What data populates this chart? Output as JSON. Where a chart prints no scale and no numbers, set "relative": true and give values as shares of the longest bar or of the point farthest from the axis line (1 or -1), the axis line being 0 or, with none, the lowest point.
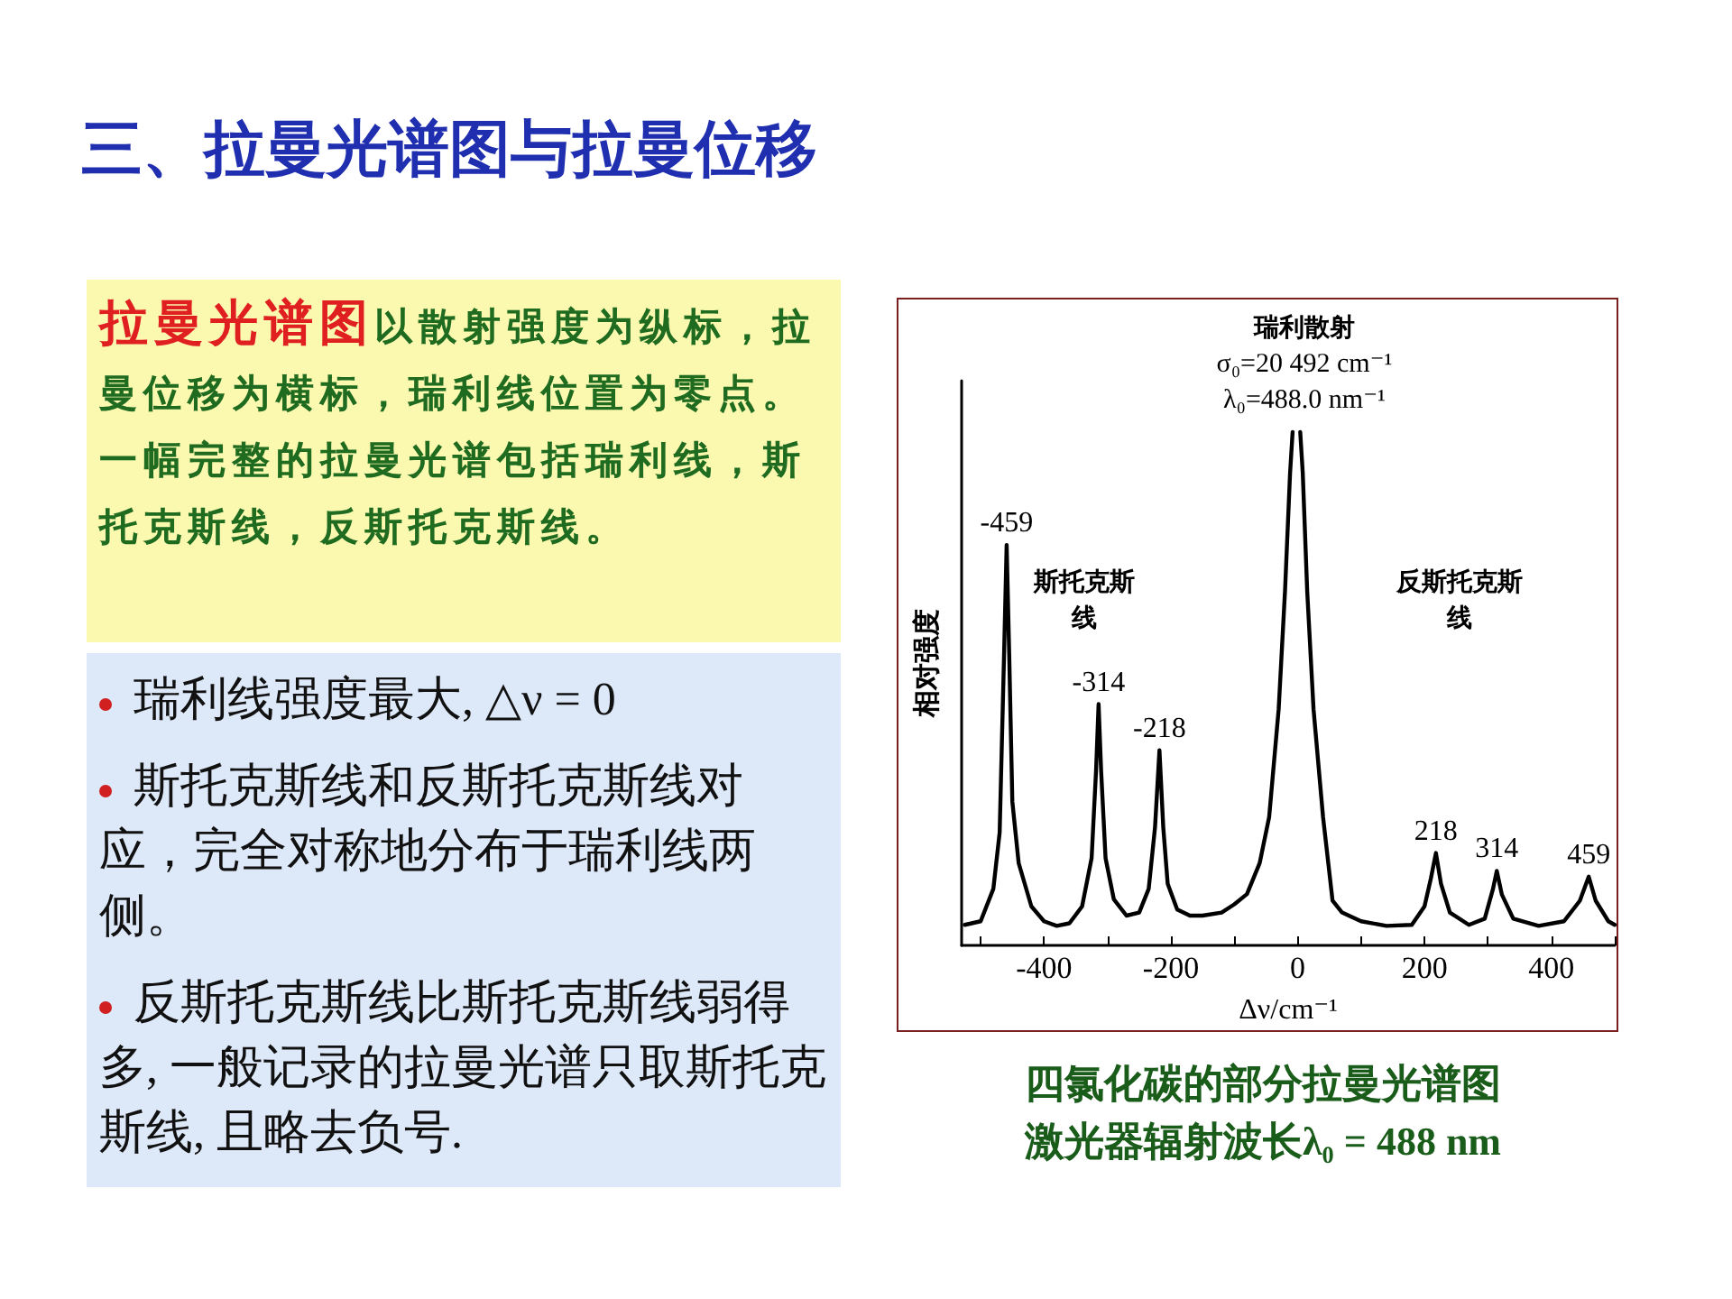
{
  "chart_data": {
    "type": "line",
    "title": "三、拉曼光谱图与拉曼位移",
    "xlabel": "Δν/cm⁻¹",
    "ylabel": "相对强度",
    "relative": true,
    "grid": false,
    "marker": "none",
    "line_style": "solid",
    "xlim": [
      -530,
      500
    ],
    "xticks": [
      {
        "value": -500,
        "label": null
      },
      -400,
      {
        "value": -300,
        "label": null
      },
      -200,
      {
        "value": -100,
        "label": null
      },
      0,
      {
        "value": 100,
        "label": null
      },
      200,
      {
        "value": 300,
        "label": null
      },
      400,
      {
        "value": 500,
        "label": null
      }
    ],
    "x": [
      -525,
      -500,
      -480,
      -470,
      -463,
      -459,
      -455,
      -450,
      -440,
      -420,
      -400,
      -380,
      -360,
      -340,
      -325,
      -318,
      -314,
      -310,
      -303,
      -290,
      -270,
      -250,
      -235,
      -225,
      -218,
      -212,
      -205,
      -190,
      -170,
      -150,
      -120,
      -100,
      -80,
      -60,
      -45,
      -30,
      -20,
      -12,
      -8,
      0,
      4,
      8,
      15,
      25,
      40,
      55,
      70,
      100,
      140,
      180,
      200,
      210,
      218,
      226,
      240,
      270,
      295,
      308,
      314,
      322,
      340,
      380,
      420,
      445,
      459,
      470,
      490,
      500
    ],
    "series": [
      {
        "color": "#000000",
        "values": [
          0.04,
          0.047,
          0.11,
          0.22,
          0.57,
          0.78,
          0.57,
          0.28,
          0.16,
          0.076,
          0.047,
          0.038,
          0.043,
          0.076,
          0.17,
          0.34,
          0.47,
          0.34,
          0.17,
          0.09,
          0.058,
          0.064,
          0.11,
          0.23,
          0.38,
          0.23,
          0.12,
          0.07,
          0.058,
          0.058,
          0.064,
          0.08,
          0.1,
          0.16,
          0.25,
          0.46,
          0.69,
          0.92,
          1,
          null,
          1,
          0.92,
          0.69,
          0.46,
          0.25,
          0.087,
          0.064,
          0.047,
          0.038,
          0.04,
          0.076,
          0.13,
          0.18,
          0.12,
          0.064,
          0.04,
          0.052,
          0.11,
          0.145,
          0.099,
          0.052,
          0.038,
          0.047,
          0.087,
          0.134,
          0.087,
          0.047,
          0.04
        ]
      }
    ],
    "annotations": [
      "拉曼光谱图",
      "以散射强度为纵标，拉曼位移为横标，瑞利线位置为零点。一幅完整的拉曼光谱包括瑞利线，斯托克斯线，反斯托克斯线。",
      "瑞利线强度最大, △ν = 0",
      "斯托克斯线和反斯托克斯线对应，完全对称地分布于瑞利线两侧。",
      "反斯托克斯线比斯托克斯线弱得多, 一般记录的拉曼光谱只取斯托克斯线, 且略去负号.",
      "瑞利散射",
      "σ₀=20 492 cm⁻¹",
      "λ₀=488.0 nm⁻¹",
      "斯托克斯线",
      "反斯托克斯线",
      "四氯化碳的部分拉曼光谱图",
      "激光器辐射波长λ₀ = 488 nm",
      {
        "text": "-459",
        "x": -459,
        "y": 0.78
      },
      {
        "text": "-314",
        "x": -314,
        "y": 0.47
      },
      {
        "text": "-218",
        "x": -218,
        "y": 0.38
      },
      {
        "text": "218",
        "x": 218,
        "y": 0.18
      },
      {
        "text": "314",
        "x": 314,
        "y": 0.145
      },
      {
        "text": "459",
        "x": 459,
        "y": 0.134
      }
    ]
  }
}
